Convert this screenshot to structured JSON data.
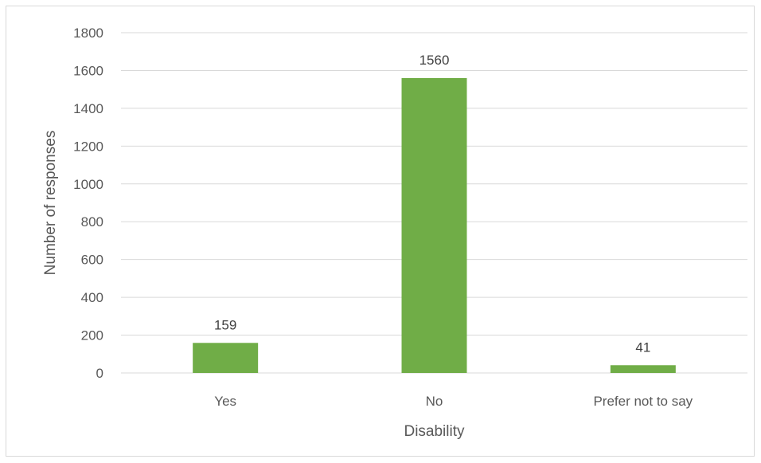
{
  "chart_data": {
    "type": "bar",
    "title": "",
    "xlabel": "Disability",
    "ylabel": "Number of responses",
    "categories": [
      "Yes",
      "No",
      "Prefer not to say"
    ],
    "values": [
      159,
      1560,
      41
    ],
    "data_labels": [
      "159",
      "1560",
      "41"
    ],
    "ylim": [
      0,
      1800
    ],
    "yticks": [
      0,
      200,
      400,
      600,
      800,
      1000,
      1200,
      1400,
      1600,
      1800
    ],
    "grid": true,
    "legend": "none",
    "bar_color": "#70ad47"
  }
}
